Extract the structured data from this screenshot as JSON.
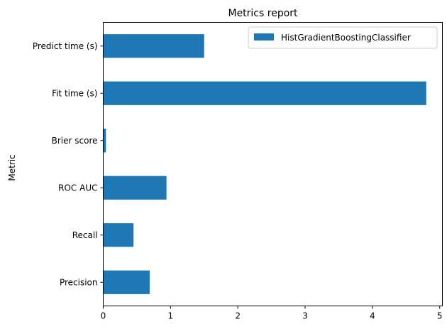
{
  "chart_data": {
    "type": "bar",
    "orientation": "horizontal",
    "title": "Metrics report",
    "xlabel": "",
    "ylabel": "Metric",
    "categories": [
      "Precision",
      "Recall",
      "ROC AUC",
      "Brier score",
      "Fit time (s)",
      "Predict time (s)"
    ],
    "series": [
      {
        "name": "HistGradientBoostingClassifier",
        "color": "#1f77b4",
        "values": [
          0.69,
          0.45,
          0.94,
          0.04,
          4.8,
          1.5
        ]
      }
    ],
    "xlim": [
      0,
      5.04
    ],
    "xticks": [
      "0",
      "1",
      "2",
      "3",
      "4",
      "5"
    ],
    "grid": false,
    "legend_position": "top-right"
  }
}
